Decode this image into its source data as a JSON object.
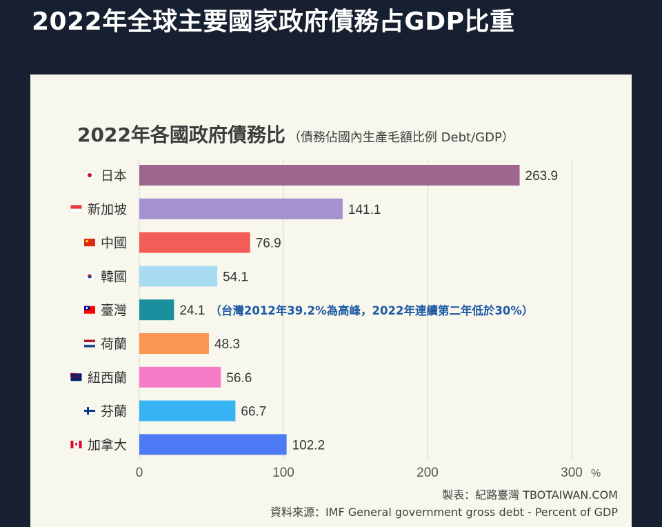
{
  "page_title": "2022年全球主要國家政府債務占GDP比重",
  "chart_data": {
    "type": "bar",
    "orientation": "horizontal",
    "title": "2022年各國政府債務比",
    "subtitle": "（債務佔國內生產毛額比例 Debt/GDP）",
    "categories": [
      "日本",
      "新加坡",
      "中國",
      "韓國",
      "臺灣",
      "荷蘭",
      "紐西蘭",
      "芬蘭",
      "加拿大"
    ],
    "flags": [
      "japan-flag-icon",
      "singapore-flag-icon",
      "china-flag-icon",
      "korea-flag-icon",
      "taiwan-flag-icon",
      "netherlands-flag-icon",
      "new-zealand-flag-icon",
      "finland-flag-icon",
      "canada-flag-icon"
    ],
    "values": [
      263.9,
      141.1,
      76.9,
      54.1,
      24.1,
      48.3,
      56.6,
      66.7,
      102.2
    ],
    "value_labels": [
      "263.9",
      "141.1",
      "76.9",
      "54.1",
      "24.1",
      "48.3",
      "56.6",
      "66.7",
      "102.2"
    ],
    "colors": [
      "#a0668f",
      "#a491cf",
      "#f35d57",
      "#a9dcf3",
      "#1b8f9e",
      "#fb9653",
      "#f77bc9",
      "#35b3f3",
      "#4d7bf5"
    ],
    "xlim": [
      0,
      300
    ],
    "x_ticks": [
      "0",
      "100",
      "200",
      "300"
    ],
    "x_unit": "%",
    "grid": true,
    "annotation": {
      "category": "臺灣",
      "text": "（台灣2012年39.2%為高峰，2022年連續第二年低於30%）",
      "color": "#1d5aa5"
    }
  },
  "credit": "製表：紀路臺灣 TBOTAIWAN.COM",
  "source": "資料來源：IMF General government gross debt - Percent of GDP"
}
